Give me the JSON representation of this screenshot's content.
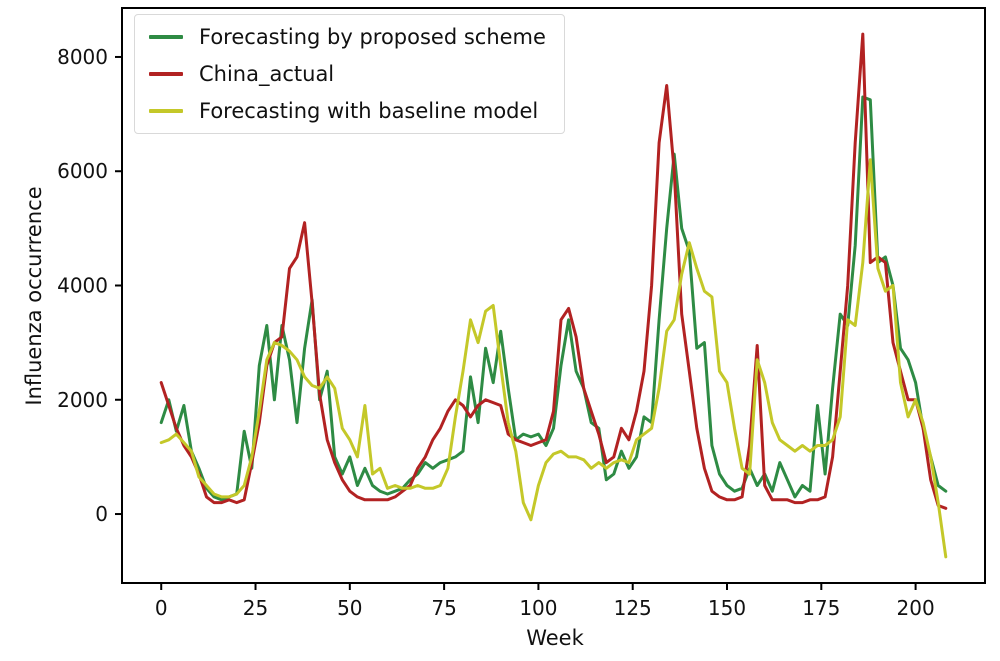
{
  "figure": {
    "background": "#ffffff",
    "text_color": "#111111",
    "spine_color": "#000000"
  },
  "chart_data": {
    "type": "line",
    "title": "",
    "xlabel": "Week",
    "ylabel": "Influenza occurrence",
    "xlim": [
      -10.4,
      218.4
    ],
    "ylim": [
      -1207,
      8857
    ],
    "xticks": [
      0,
      25,
      50,
      75,
      100,
      125,
      150,
      175,
      200
    ],
    "yticks": [
      0,
      2000,
      4000,
      6000,
      8000
    ],
    "grid": false,
    "legend_position": "upper-left",
    "x": [
      0,
      2,
      4,
      6,
      8,
      10,
      12,
      14,
      16,
      18,
      20,
      22,
      24,
      26,
      28,
      30,
      32,
      34,
      36,
      38,
      40,
      42,
      44,
      46,
      48,
      50,
      52,
      54,
      56,
      58,
      60,
      62,
      64,
      66,
      68,
      70,
      72,
      74,
      76,
      78,
      80,
      82,
      84,
      86,
      88,
      90,
      92,
      94,
      96,
      98,
      100,
      102,
      104,
      106,
      108,
      110,
      112,
      114,
      116,
      118,
      120,
      122,
      124,
      126,
      128,
      130,
      132,
      134,
      136,
      138,
      140,
      142,
      144,
      146,
      148,
      150,
      152,
      154,
      156,
      158,
      160,
      162,
      164,
      166,
      168,
      170,
      172,
      174,
      176,
      178,
      180,
      182,
      184,
      186,
      188,
      190,
      192,
      194,
      196,
      198,
      200,
      202,
      204,
      206,
      208
    ],
    "series": [
      {
        "name": "Forecasting by proposed scheme",
        "color": "#2e8b44",
        "values": [
          1600,
          2000,
          1450,
          1900,
          1100,
          800,
          450,
          300,
          250,
          300,
          350,
          1450,
          800,
          2600,
          3300,
          2000,
          3300,
          2700,
          1600,
          2900,
          3750,
          2000,
          2500,
          1000,
          700,
          1000,
          500,
          800,
          500,
          400,
          350,
          400,
          450,
          600,
          700,
          900,
          800,
          900,
          950,
          1000,
          1100,
          2400,
          1600,
          2900,
          2300,
          3200,
          2200,
          1300,
          1400,
          1350,
          1400,
          1200,
          1500,
          2600,
          3400,
          2500,
          2200,
          1600,
          1500,
          600,
          700,
          1100,
          800,
          1000,
          1700,
          1600,
          3400,
          5000,
          6300,
          5000,
          4600,
          2900,
          3000,
          1200,
          700,
          500,
          400,
          450,
          800,
          500,
          700,
          400,
          900,
          600,
          300,
          500,
          400,
          1900,
          700,
          2200,
          3500,
          3300,
          4700,
          7300,
          7250,
          4400,
          4500,
          4000,
          2900,
          2700,
          2300,
          1500,
          1000,
          500,
          400
        ]
      },
      {
        "name": "China_actual",
        "color": "#b22222",
        "values": [
          2300,
          1900,
          1500,
          1200,
          1000,
          700,
          300,
          200,
          200,
          250,
          200,
          250,
          900,
          1600,
          2600,
          3000,
          3100,
          4300,
          4500,
          5100,
          3700,
          2100,
          1300,
          900,
          600,
          400,
          300,
          250,
          250,
          250,
          250,
          300,
          400,
          500,
          800,
          1000,
          1300,
          1500,
          1800,
          2000,
          1900,
          1700,
          1900,
          2000,
          1950,
          1900,
          1400,
          1300,
          1250,
          1200,
          1250,
          1300,
          1800,
          3400,
          3600,
          3100,
          2200,
          1800,
          1400,
          900,
          1000,
          1500,
          1300,
          1800,
          2500,
          4000,
          6500,
          7500,
          6000,
          3500,
          2500,
          1500,
          800,
          400,
          300,
          250,
          250,
          300,
          1200,
          2950,
          500,
          250,
          250,
          250,
          200,
          200,
          250,
          250,
          300,
          1000,
          2500,
          4000,
          6500,
          8400,
          4400,
          4500,
          4400,
          3000,
          2500,
          2000,
          2000,
          1500,
          600,
          150,
          100
        ]
      },
      {
        "name": "Forecasting with baseline model",
        "color": "#c4c829",
        "values": [
          1250,
          1300,
          1400,
          1250,
          1100,
          650,
          500,
          350,
          300,
          300,
          350,
          500,
          1000,
          1800,
          2700,
          3000,
          2950,
          2850,
          2700,
          2400,
          2250,
          2200,
          2400,
          2200,
          1500,
          1300,
          1000,
          1900,
          700,
          800,
          450,
          500,
          450,
          450,
          500,
          450,
          450,
          500,
          800,
          1700,
          2500,
          3400,
          3000,
          3550,
          3650,
          2600,
          1600,
          1100,
          200,
          -100,
          500,
          900,
          1050,
          1100,
          1000,
          1000,
          950,
          800,
          900,
          800,
          900,
          950,
          900,
          1300,
          1400,
          1500,
          2200,
          3200,
          3400,
          4200,
          4750,
          4300,
          3900,
          3800,
          2500,
          2300,
          1500,
          800,
          700,
          2700,
          2300,
          1600,
          1300,
          1200,
          1100,
          1200,
          1100,
          1200,
          1200,
          1300,
          1700,
          3400,
          3300,
          4400,
          6200,
          4300,
          3900,
          4000,
          2300,
          1700,
          2000,
          1600,
          1000,
          200,
          -750
        ]
      }
    ]
  }
}
